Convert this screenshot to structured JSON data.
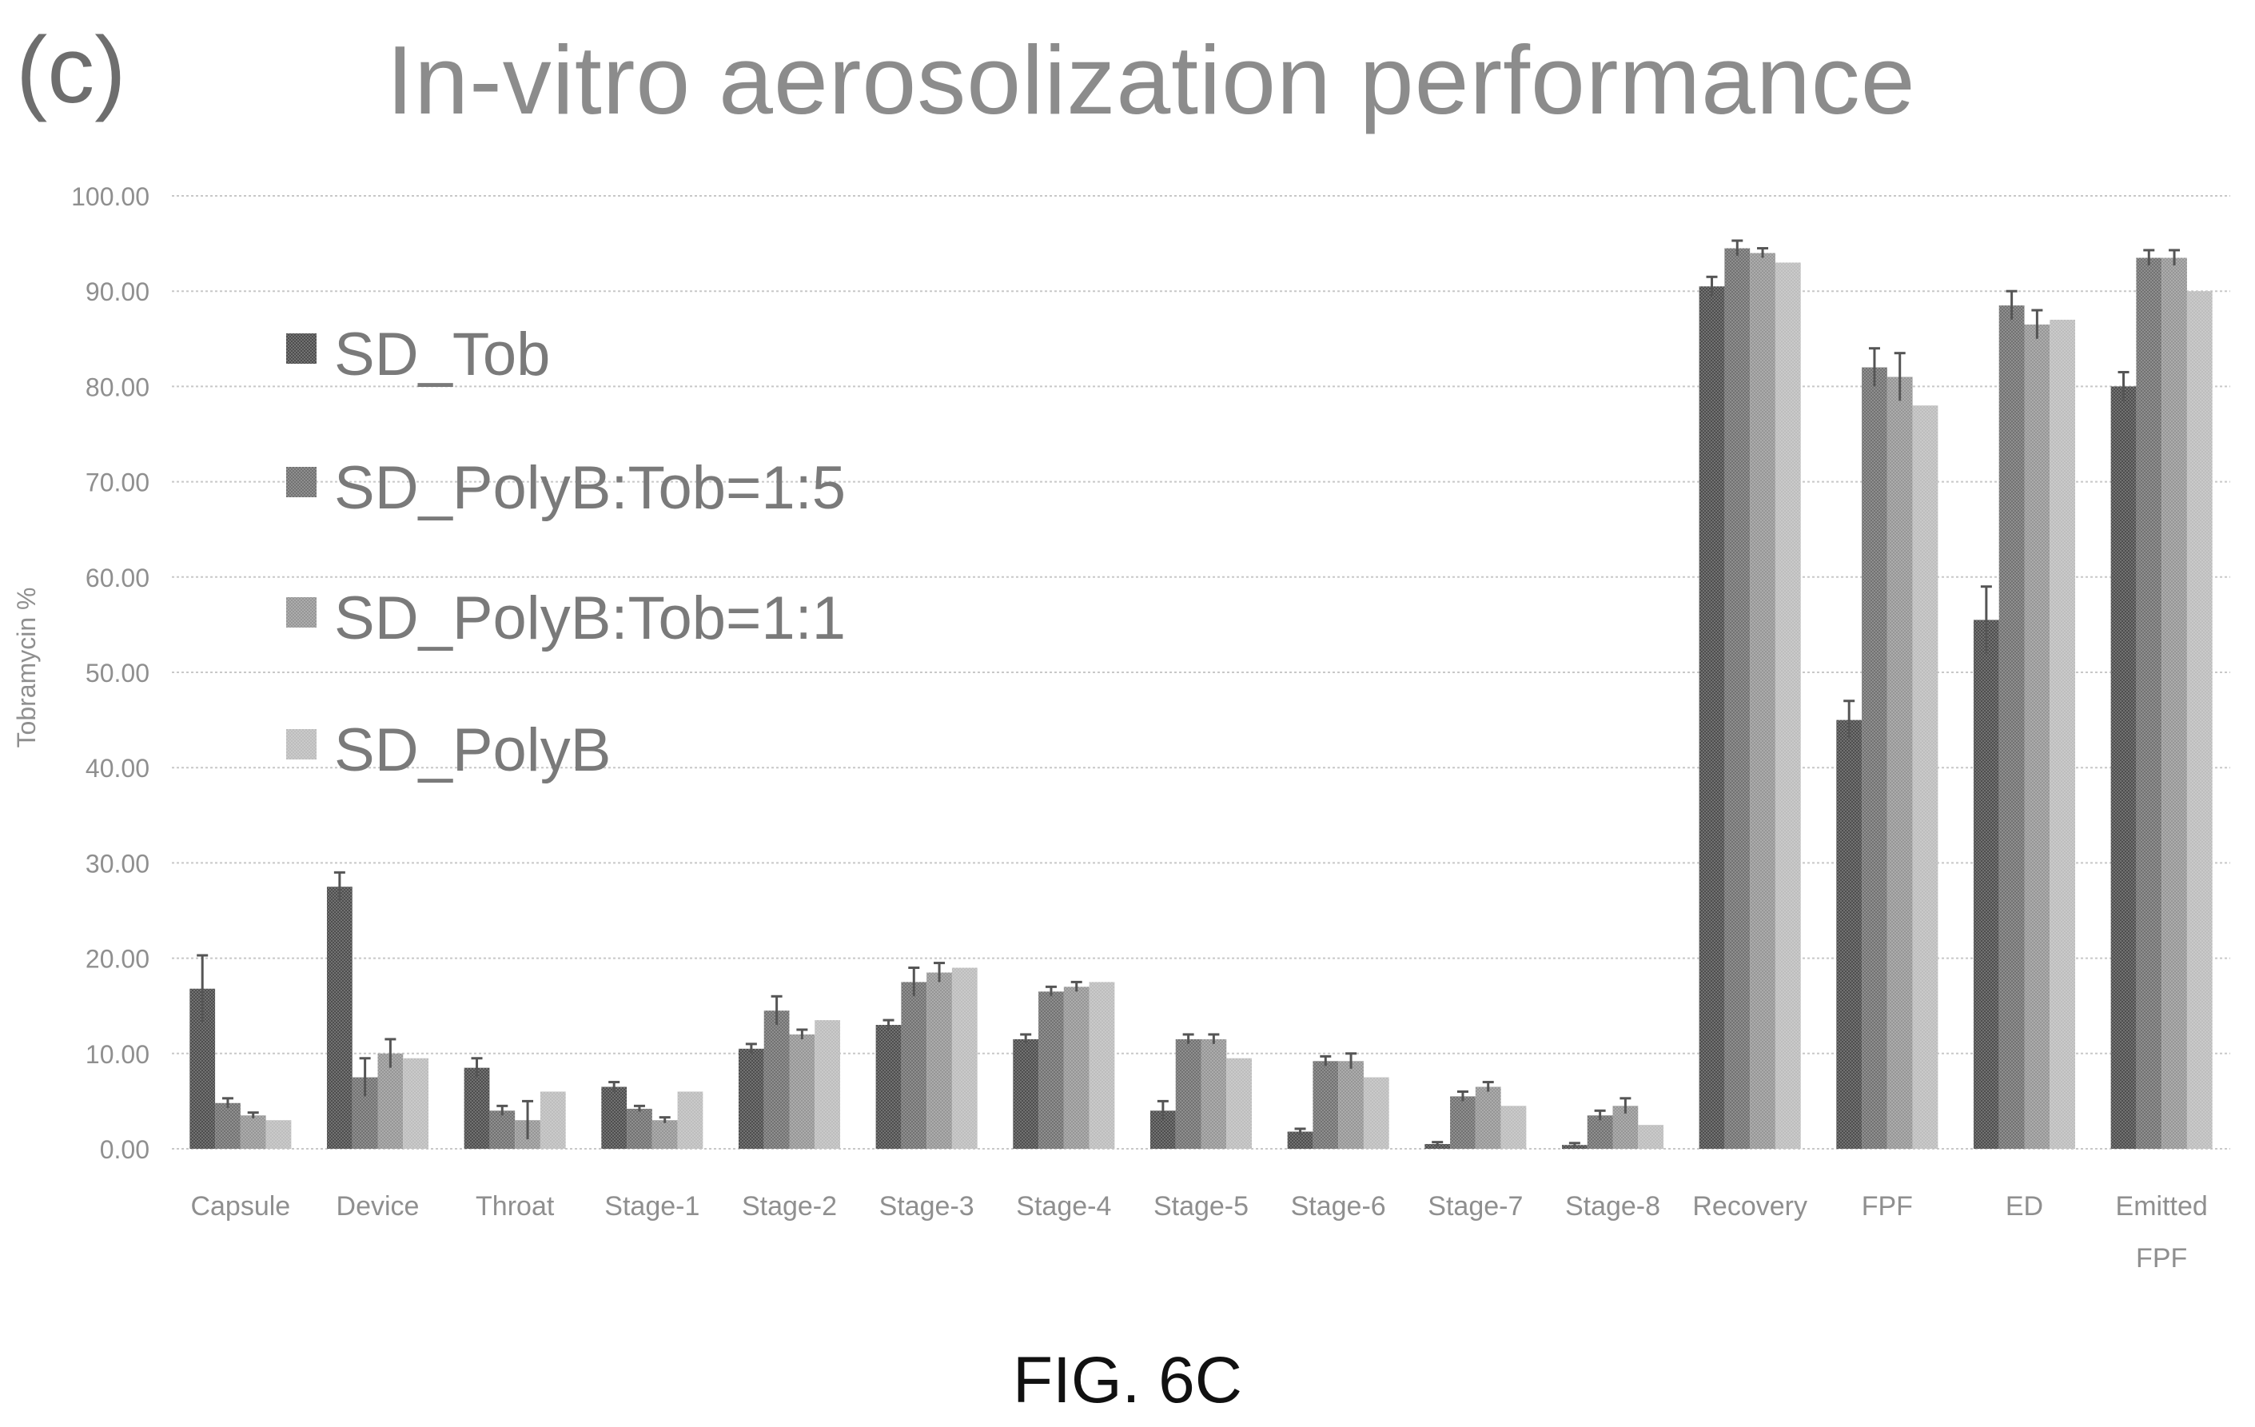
{
  "panel_label": "(c)",
  "figure_caption": "FIG. 6C",
  "colors": {
    "grid": "#c8c8c8",
    "axis_text": "#8f8f8f",
    "error_bar": "#555555",
    "series": [
      "#4e4e4e",
      "#727272",
      "#969696",
      "#bdbdbd"
    ]
  },
  "chart_data": {
    "type": "bar",
    "title": "In-vitro aerosolization performance",
    "ylabel": "Tobramycin %",
    "xlabel": "",
    "ylim": [
      0,
      100
    ],
    "yticks": [
      "0.00",
      "10.00",
      "20.00",
      "30.00",
      "40.00",
      "50.00",
      "60.00",
      "70.00",
      "80.00",
      "90.00",
      "100.00"
    ],
    "grid": true,
    "legend_position": "upper-left",
    "categories": [
      "Capsule",
      "Device",
      "Throat",
      "Stage-1",
      "Stage-2",
      "Stage-3",
      "Stage-4",
      "Stage-5",
      "Stage-6",
      "Stage-7",
      "Stage-8",
      "Recovery",
      "FPF",
      "ED",
      "Emitted FPF"
    ],
    "series": [
      {
        "name": "SD_Tob",
        "values": [
          16.8,
          27.5,
          8.5,
          6.5,
          10.5,
          13.0,
          11.5,
          4.0,
          1.8,
          0.5,
          0.4,
          90.5,
          45.0,
          55.5,
          80.0
        ],
        "errors": [
          3.5,
          1.5,
          1.0,
          0.5,
          0.5,
          0.5,
          0.5,
          1.0,
          0.3,
          0.2,
          0.2,
          1.0,
          2.0,
          3.5,
          1.5
        ]
      },
      {
        "name": "SD_PolyB:Tob=1:5",
        "values": [
          4.8,
          7.5,
          4.0,
          4.2,
          14.5,
          17.5,
          16.5,
          11.5,
          9.2,
          5.5,
          3.5,
          94.5,
          82.0,
          88.5,
          93.5
        ],
        "errors": [
          0.5,
          2.0,
          0.5,
          0.3,
          1.5,
          1.5,
          0.5,
          0.5,
          0.5,
          0.5,
          0.5,
          0.8,
          2.0,
          1.5,
          0.8
        ]
      },
      {
        "name": "SD_PolyB:Tob=1:1",
        "values": [
          3.5,
          10.0,
          3.0,
          3.0,
          12.0,
          18.5,
          17.0,
          11.5,
          9.2,
          6.5,
          4.5,
          94.0,
          81.0,
          86.5,
          93.5
        ],
        "errors": [
          0.3,
          1.5,
          2.0,
          0.3,
          0.5,
          1.0,
          0.5,
          0.5,
          0.8,
          0.5,
          0.8,
          0.5,
          2.5,
          1.5,
          0.8
        ]
      },
      {
        "name": "SD_PolyB",
        "values": [
          3.0,
          9.5,
          6.0,
          6.0,
          13.5,
          19.0,
          17.5,
          9.5,
          7.5,
          4.5,
          2.5,
          93.0,
          78.0,
          87.0,
          90.0
        ],
        "errors": [
          0,
          0,
          0,
          0,
          0,
          0,
          0,
          0,
          0,
          0,
          0,
          0,
          0,
          0,
          0
        ]
      }
    ]
  }
}
